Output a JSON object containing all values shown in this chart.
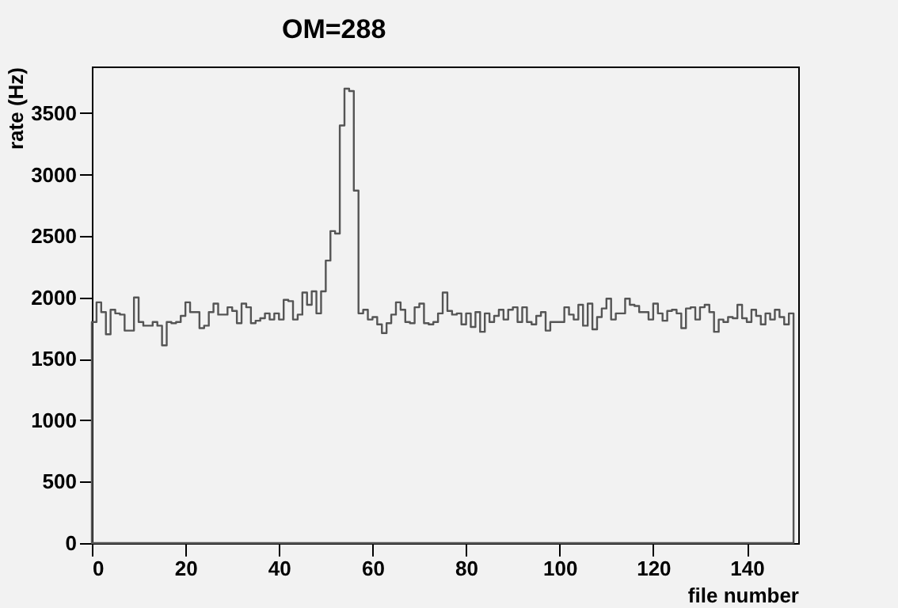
{
  "chart_data": {
    "type": "histogram",
    "title": "OM=288",
    "xlabel": "file number",
    "ylabel": "rate (Hz)",
    "bins": [
      0,
      1,
      2,
      3,
      4,
      5,
      6,
      7,
      8,
      9,
      10,
      11,
      12,
      13,
      14,
      15,
      16,
      17,
      18,
      19,
      20,
      21,
      22,
      23,
      24,
      25,
      26,
      27,
      28,
      29,
      30,
      31,
      32,
      33,
      34,
      35,
      36,
      37,
      38,
      39,
      40,
      41,
      42,
      43,
      44,
      45,
      46,
      47,
      48,
      49,
      50,
      51,
      52,
      53,
      54,
      55,
      56,
      57,
      58,
      59,
      60,
      61,
      62,
      63,
      64,
      65,
      66,
      67,
      68,
      69,
      70,
      71,
      72,
      73,
      74,
      75,
      76,
      77,
      78,
      79,
      80,
      81,
      82,
      83,
      84,
      85,
      86,
      87,
      88,
      89,
      90,
      91,
      92,
      93,
      94,
      95,
      96,
      97,
      98,
      99,
      100,
      101,
      102,
      103,
      104,
      105,
      106,
      107,
      108,
      109,
      110,
      111,
      112,
      113,
      114,
      115,
      116,
      117,
      118,
      119,
      120,
      121,
      122,
      123,
      124,
      125,
      126,
      127,
      128,
      129,
      130,
      131,
      132,
      133,
      134,
      135,
      136,
      137,
      138,
      139,
      140,
      141,
      142,
      143,
      144,
      145,
      146,
      147,
      148,
      149,
      150
    ],
    "values": [
      1800,
      1960,
      1880,
      1700,
      1900,
      1870,
      1860,
      1730,
      1730,
      2000,
      1800,
      1770,
      1770,
      1800,
      1770,
      1610,
      1800,
      1790,
      1800,
      1850,
      1960,
      1880,
      1880,
      1750,
      1770,
      1880,
      1950,
      1860,
      1860,
      1920,
      1890,
      1790,
      1950,
      1920,
      1790,
      1810,
      1830,
      1870,
      1820,
      1870,
      1820,
      1980,
      1970,
      1820,
      1860,
      2040,
      1940,
      2050,
      1870,
      2050,
      2300,
      2540,
      2520,
      3400,
      3700,
      3680,
      2870,
      1870,
      1900,
      1820,
      1840,
      1780,
      1710,
      1790,
      1860,
      1960,
      1900,
      1800,
      1790,
      1920,
      1950,
      1790,
      1780,
      1800,
      1870,
      2040,
      1890,
      1860,
      1870,
      1780,
      1870,
      1760,
      1880,
      1720,
      1870,
      1800,
      1850,
      1900,
      1820,
      1900,
      1920,
      1800,
      1920,
      1800,
      1780,
      1850,
      1880,
      1730,
      1800,
      1800,
      1800,
      1920,
      1860,
      1820,
      1940,
      1770,
      1950,
      1740,
      1840,
      1910,
      1990,
      1820,
      1870,
      1870,
      1990,
      1940,
      1930,
      1880,
      1880,
      1820,
      1950,
      1870,
      1810,
      1890,
      1900,
      1870,
      1750,
      1910,
      1920,
      1820,
      1920,
      1940,
      1880,
      1720,
      1820,
      1800,
      1840,
      1830,
      1940,
      1830,
      1800,
      1900,
      1850,
      1780,
      1870,
      1820,
      1900,
      1840,
      1780,
      1870
    ],
    "color": "#555555",
    "xlim": [
      0,
      151
    ],
    "xticks": [
      0,
      20,
      40,
      60,
      80,
      100,
      120,
      140
    ],
    "ylim": [
      0,
      3880
    ],
    "yticks": [
      0,
      500,
      1000,
      1500,
      2000,
      2500,
      3000,
      3500
    ],
    "grid": false
  }
}
